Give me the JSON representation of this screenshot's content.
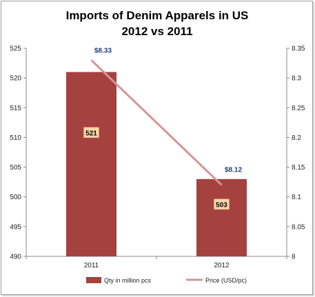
{
  "chart_data": {
    "type": "bar",
    "title_lines": [
      "Imports of Denim Apparels in US",
      "2012 vs 2011"
    ],
    "categories": [
      "2011",
      "2012"
    ],
    "series": [
      {
        "name": "Qty in million pcs",
        "type": "bar",
        "axis": "left",
        "values": [
          521,
          503
        ],
        "data_labels": [
          "521",
          "503"
        ],
        "color": "#a5413f"
      },
      {
        "name": "Price (USD/pc)",
        "type": "line",
        "axis": "right",
        "values": [
          8.33,
          8.12
        ],
        "data_labels": [
          "$8.33",
          "$8.12"
        ],
        "color": "#d49596"
      }
    ],
    "y_left": {
      "ylim": [
        490,
        525
      ],
      "ticks": [
        "490",
        "495",
        "500",
        "505",
        "510",
        "515",
        "520",
        "525"
      ]
    },
    "y_right": {
      "ylim": [
        8,
        8.35
      ],
      "ticks": [
        "8",
        "8.05",
        "8.1",
        "8.15",
        "8.2",
        "8.25",
        "8.3",
        "8.35"
      ]
    },
    "legend_position": "bottom",
    "grid": false,
    "colors": {
      "bar": "#a5413f",
      "line": "#d49596",
      "bar_label_bg": "#fbd6a8",
      "price_label": "#1f3f7a"
    }
  }
}
